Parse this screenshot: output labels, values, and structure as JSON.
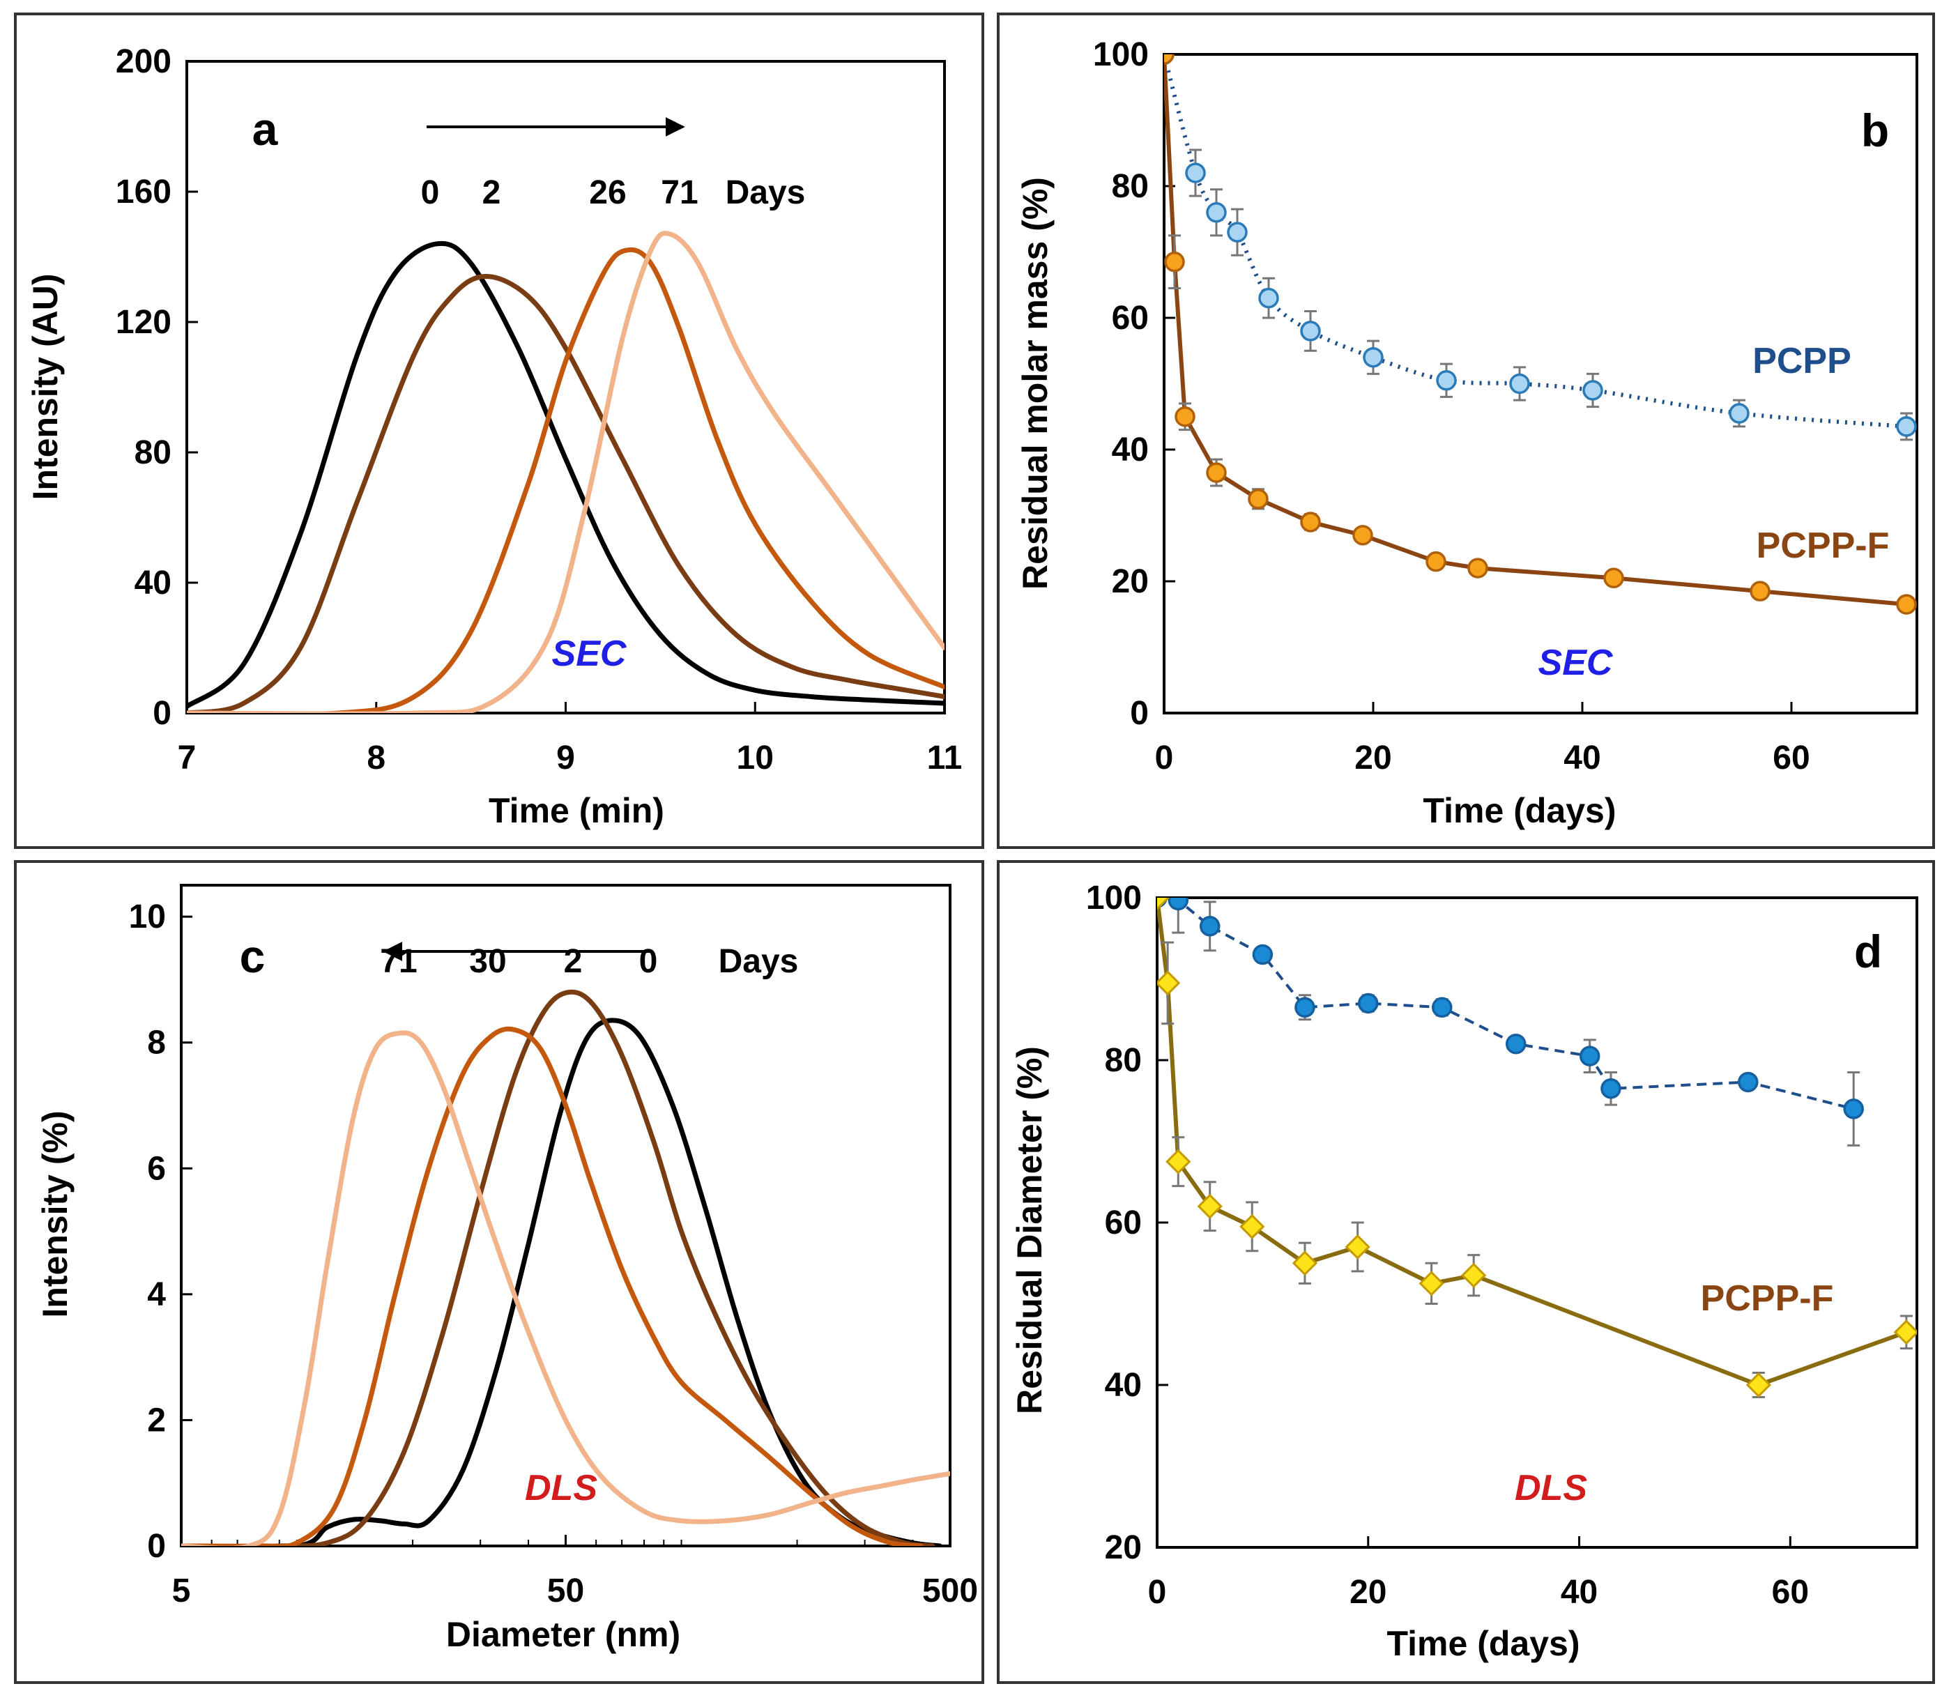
{
  "colors": {
    "frame": "#333333",
    "axis": "#000000",
    "day0": "#000000",
    "day2": "#7a3c13",
    "day26": "#c4580d",
    "day30": "#c4580d",
    "day71": "#f2b28a",
    "pcpp": "#1f4e8c",
    "pcpp_marker_light": "#a9d4f2",
    "pcpp_marker_dark": "#1a8ad4",
    "pcppf_line": "#8b4513",
    "pcppf_line_gold": "#8a6c10",
    "pcppf_marker": "#f7a21b",
    "pcppf_diamond": "#ffe31a",
    "pcppf_text": "#8b4513",
    "sec_text": "#1f1fe6",
    "dls_text": "#d11d1d",
    "errorbar": "#777777"
  },
  "chart_data": [
    {
      "id": "a",
      "type": "line",
      "panel_label": "a",
      "xlabel": "Time (min)",
      "ylabel": "Intensity (AU)",
      "xlim": [
        7,
        11
      ],
      "ylim": [
        0,
        200
      ],
      "x_ticks": [
        7,
        8,
        9,
        10,
        11
      ],
      "y_ticks": [
        0,
        40,
        80,
        120,
        160,
        200
      ],
      "annotation": "SEC",
      "days_label": "Days",
      "arrow_direction": "right",
      "series": [
        {
          "name": "0",
          "color_key": "day0",
          "x": [
            7.0,
            7.3,
            7.6,
            7.9,
            8.1,
            8.32,
            8.5,
            8.75,
            9.0,
            9.25,
            9.5,
            9.75,
            10.0,
            10.3,
            10.6,
            11.0
          ],
          "y": [
            2,
            15,
            55,
            110,
            135,
            144,
            138,
            112,
            78,
            46,
            24,
            12,
            7,
            5,
            4,
            3
          ]
        },
        {
          "name": "2",
          "color_key": "day2",
          "x": [
            7.0,
            7.3,
            7.6,
            7.9,
            8.2,
            8.4,
            8.58,
            8.8,
            9.0,
            9.3,
            9.6,
            9.9,
            10.2,
            10.5,
            10.8,
            11.0
          ],
          "y": [
            0,
            3,
            20,
            65,
            110,
            128,
            134,
            128,
            112,
            78,
            45,
            24,
            14,
            10,
            7,
            5
          ]
        },
        {
          "name": "26",
          "color_key": "day26",
          "x": [
            7.0,
            7.8,
            8.2,
            8.5,
            8.8,
            9.0,
            9.2,
            9.32,
            9.45,
            9.6,
            9.8,
            10.0,
            10.3,
            10.6,
            11.0
          ],
          "y": [
            0,
            0,
            5,
            25,
            70,
            108,
            135,
            142,
            138,
            118,
            84,
            58,
            34,
            18,
            8
          ]
        },
        {
          "name": "71",
          "color_key": "day71",
          "x": [
            7.0,
            8.2,
            8.6,
            8.9,
            9.1,
            9.3,
            9.45,
            9.55,
            9.7,
            9.9,
            10.1,
            10.4,
            10.7,
            11.0
          ],
          "y": [
            0,
            0,
            3,
            22,
            62,
            115,
            142,
            147,
            138,
            112,
            92,
            68,
            44,
            20
          ]
        }
      ],
      "series_labels": [
        "0",
        "2",
        "26",
        "71"
      ]
    },
    {
      "id": "b",
      "type": "line",
      "panel_label": "b",
      "xlabel": "Time (days)",
      "ylabel": "Residual molar mass (%)",
      "xlim": [
        0,
        72
      ],
      "ylim": [
        0,
        100
      ],
      "x_ticks": [
        0,
        20,
        40,
        60
      ],
      "y_ticks": [
        0,
        20,
        40,
        60,
        80,
        100
      ],
      "annotation": "SEC",
      "series": [
        {
          "name": "PCPP",
          "x": [
            0,
            3,
            5,
            7,
            10,
            14,
            20,
            27,
            34,
            41,
            55,
            71
          ],
          "y": [
            100,
            82,
            76,
            73,
            63,
            58,
            54,
            50.5,
            50,
            49,
            45.5,
            43.5
          ],
          "err": [
            0,
            3.5,
            3.5,
            3.5,
            3,
            3,
            2.5,
            2.5,
            2.5,
            2.5,
            2,
            2
          ]
        },
        {
          "name": "PCPP-F",
          "x": [
            0,
            1,
            2,
            5,
            9,
            14,
            19,
            26,
            30,
            43,
            57,
            71
          ],
          "y": [
            100,
            68.5,
            45,
            36.5,
            32.5,
            29,
            27,
            23,
            22,
            20.5,
            18.5,
            16.5
          ],
          "err": [
            0,
            4,
            2,
            2,
            1.5,
            1.2,
            1,
            1,
            1,
            1,
            1,
            1
          ]
        }
      ],
      "series_labels": [
        "PCPP",
        "PCPP-F"
      ]
    },
    {
      "id": "c",
      "type": "line",
      "panel_label": "c",
      "xlabel": "Diameter (nm)",
      "ylabel": "Intensity (%)",
      "xscale": "log",
      "xlim": [
        5,
        500
      ],
      "ylim": [
        0,
        10.5
      ],
      "x_ticks": [
        5,
        50,
        500
      ],
      "y_ticks": [
        0,
        2,
        4,
        6,
        8,
        10
      ],
      "annotation": "DLS",
      "days_label": "Days",
      "arrow_direction": "left",
      "series": [
        {
          "name": "0",
          "color_key": "day0",
          "x": [
            5,
            10,
            12,
            14,
            16.5,
            19,
            22,
            27,
            33,
            40,
            48,
            56,
            65,
            78,
            95,
            115,
            140,
            170,
            210,
            260,
            320,
            400,
            470
          ],
          "y": [
            0,
            0,
            0.3,
            0.42,
            0.4,
            0.35,
            0.4,
            1.2,
            2.8,
            4.8,
            6.8,
            8.0,
            8.35,
            8.1,
            7.0,
            5.4,
            3.6,
            2.1,
            1.0,
            0.45,
            0.2,
            0.05,
            0
          ]
        },
        {
          "name": "2",
          "color_key": "day2",
          "x": [
            5,
            9,
            12,
            15,
            19,
            24,
            30,
            37,
            44,
            51,
            59,
            70,
            85,
            100,
            120,
            150,
            190,
            240,
            300,
            380,
            450
          ],
          "y": [
            0,
            0,
            0.05,
            0.4,
            1.5,
            3.4,
            5.6,
            7.5,
            8.5,
            8.8,
            8.6,
            7.8,
            6.4,
            5.0,
            3.8,
            2.6,
            1.6,
            0.8,
            0.3,
            0.05,
            0
          ]
        },
        {
          "name": "30",
          "color_key": "day30",
          "x": [
            5,
            8,
            10,
            12.5,
            15,
            18,
            22,
            27,
            32,
            37,
            43,
            50,
            58,
            70,
            85,
            100,
            130,
            170,
            220,
            280,
            350,
            420
          ],
          "y": [
            0,
            0,
            0.05,
            0.6,
            2.0,
            4.0,
            6.0,
            7.5,
            8.1,
            8.2,
            7.9,
            7.0,
            5.8,
            4.4,
            3.3,
            2.6,
            2.0,
            1.4,
            0.8,
            0.3,
            0.05,
            0
          ]
        },
        {
          "name": "71",
          "color_key": "day71",
          "x": [
            5,
            7.5,
            9,
            10.5,
            12,
            14,
            16,
            18.5,
            21,
            24,
            28,
            33,
            40,
            50,
            62,
            80,
            100,
            130,
            170,
            220,
            270,
            330,
            400,
            500
          ],
          "y": [
            0,
            0,
            0.5,
            2.3,
            4.5,
            6.8,
            7.9,
            8.15,
            8.0,
            7.3,
            6.1,
            4.8,
            3.4,
            2.0,
            1.1,
            0.55,
            0.4,
            0.4,
            0.5,
            0.7,
            0.85,
            0.95,
            1.05,
            1.15
          ]
        }
      ],
      "series_labels": [
        "71",
        "30",
        "2",
        "0"
      ]
    },
    {
      "id": "d",
      "type": "line",
      "panel_label": "d",
      "xlabel": "Time (days)",
      "ylabel": "Residual Diameter (%)",
      "xlim": [
        0,
        72
      ],
      "ylim": [
        20,
        100
      ],
      "x_ticks": [
        0,
        20,
        40,
        60
      ],
      "y_ticks": [
        20,
        40,
        60,
        80,
        100
      ],
      "annotation": "DLS",
      "series": [
        {
          "name": "PCPP",
          "x": [
            0,
            2,
            5,
            10,
            14,
            20,
            27,
            34,
            41,
            43,
            56,
            66
          ],
          "y": [
            100,
            99.7,
            96.5,
            93,
            86.5,
            87,
            86.5,
            82,
            80.5,
            76.5,
            77.3,
            74
          ],
          "err": [
            0,
            4,
            3,
            0.5,
            1.5,
            1,
            1,
            0.5,
            2,
            2,
            0.5,
            4.5
          ]
        },
        {
          "name": "PCPP-F",
          "x": [
            0,
            1,
            2,
            5,
            9,
            14,
            19,
            26,
            30,
            57,
            71
          ],
          "y": [
            100,
            89.5,
            67.5,
            62,
            59.5,
            55,
            57,
            52.5,
            53.5,
            40,
            46.5
          ],
          "err": [
            0,
            5,
            3,
            3,
            3,
            2.5,
            3,
            2.5,
            2.5,
            1.5,
            2
          ]
        }
      ],
      "series_labels": [
        "PCPP-F"
      ]
    }
  ]
}
